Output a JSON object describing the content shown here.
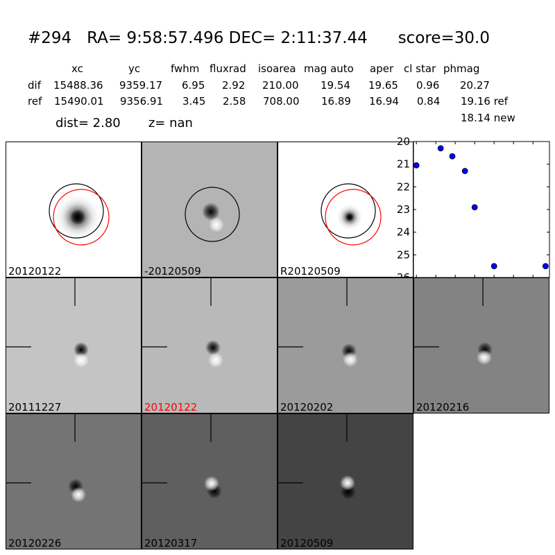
{
  "header": {
    "id": "#294",
    "ra": "RA= 9:58:57.496",
    "dec": "DEC= 2:11:37.44",
    "score": "score=30.0"
  },
  "table": {
    "columns": [
      "xc",
      "yc",
      "fwhm",
      "fluxrad",
      "isoarea",
      "mag auto",
      "aper",
      "cl star",
      "phmag"
    ],
    "rows": [
      {
        "label": "dif",
        "values": [
          "15488.36",
          "9359.17",
          "6.95",
          "2.92",
          "210.00",
          "19.54",
          "19.65",
          "0.96",
          "20.27"
        ]
      },
      {
        "label": "ref",
        "values": [
          "15490.01",
          "9356.91",
          "3.45",
          "2.58",
          "708.00",
          "16.89",
          "16.94",
          "0.84",
          "19.16 ref"
        ]
      }
    ],
    "extra": "18.14 new"
  },
  "dist_line": {
    "dist": "dist=  2.80",
    "z": "z=   nan"
  },
  "top_panels": [
    {
      "label": "20120122",
      "label_color": "#000000",
      "bg": "#ffffff"
    },
    {
      "label": "-20120509",
      "label_color": "#000000",
      "bg": "#b4b4b4"
    },
    {
      "label": "R20120509",
      "label_color": "#000000",
      "bg": "#ffffff"
    }
  ],
  "stamps": [
    {
      "label": "20111227",
      "label_color": "#000000",
      "bg": "#c4c4c4"
    },
    {
      "label": "20120122",
      "label_color": "#ff0000",
      "bg": "#b9b9b9"
    },
    {
      "label": "20120202",
      "label_color": "#000000",
      "bg": "#9b9b9b"
    },
    {
      "label": "20120216",
      "label_color": "#000000",
      "bg": "#838383"
    },
    {
      "label": "20120226",
      "label_color": "#000000",
      "bg": "#747474"
    },
    {
      "label": "20120317",
      "label_color": "#000000",
      "bg": "#5f5f5f"
    },
    {
      "label": "20120509",
      "label_color": "#000000",
      "bg": "#444444"
    }
  ],
  "chart_data": {
    "type": "scatter",
    "x": [
      0,
      25,
      37,
      50,
      60,
      80,
      133
    ],
    "y": [
      21.05,
      20.3,
      20.65,
      21.3,
      22.9,
      25.5,
      25.5
    ],
    "xlim": [
      -3,
      137
    ],
    "ylim": [
      26,
      20
    ],
    "xticks": [
      0,
      20,
      40,
      60,
      80,
      100,
      120
    ],
    "yticks": [
      20,
      21,
      22,
      23,
      24,
      25,
      26
    ],
    "marker_color": "#0000ff",
    "inverted_y": true
  }
}
